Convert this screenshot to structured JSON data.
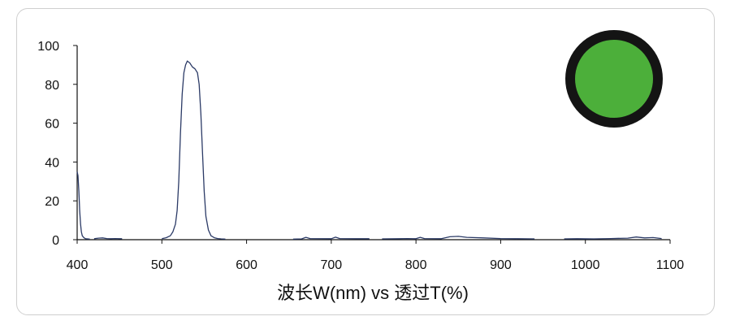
{
  "chart_data": {
    "type": "line",
    "title": "",
    "xlabel": "波长W(nm) vs 透过T(%)",
    "ylabel": "",
    "xlim": [
      400,
      1100
    ],
    "ylim": [
      0,
      100
    ],
    "x_ticks": [
      400,
      500,
      600,
      700,
      800,
      900,
      1000,
      1100
    ],
    "y_ticks": [
      0,
      20,
      40,
      60,
      80,
      100
    ],
    "grid": false,
    "legend": "none",
    "line_color": "#2b3a66",
    "series": [
      {
        "segments": [
          [
            [
              400,
              35
            ],
            [
              401,
              33
            ],
            [
              402,
              25
            ],
            [
              403,
              15
            ],
            [
              404,
              8
            ],
            [
              405,
              4
            ],
            [
              406,
              2
            ],
            [
              408,
              1
            ],
            [
              410,
              0.5
            ],
            [
              415,
              0.3
            ]
          ],
          [
            [
              420,
              0.5
            ],
            [
              425,
              0.8
            ],
            [
              430,
              0.9
            ],
            [
              435,
              0.6
            ],
            [
              440,
              0.5
            ],
            [
              445,
              0.6
            ],
            [
              450,
              0.5
            ],
            [
              453,
              0.5
            ]
          ],
          [
            [
              500,
              0.5
            ],
            [
              505,
              1
            ],
            [
              510,
              2
            ],
            [
              513,
              4
            ],
            [
              516,
              8
            ],
            [
              518,
              15
            ],
            [
              520,
              30
            ],
            [
              522,
              55
            ],
            [
              524,
              75
            ],
            [
              526,
              86
            ],
            [
              528,
              90
            ],
            [
              530,
              92
            ],
            [
              533,
              91
            ],
            [
              536,
              89
            ],
            [
              539,
              88
            ],
            [
              542,
              86
            ],
            [
              544,
              80
            ],
            [
              546,
              65
            ],
            [
              548,
              45
            ],
            [
              550,
              25
            ],
            [
              552,
              12
            ],
            [
              555,
              5
            ],
            [
              558,
              2
            ],
            [
              562,
              1
            ],
            [
              566,
              0.6
            ],
            [
              570,
              0.4
            ],
            [
              575,
              0.3
            ]
          ],
          [
            [
              655,
              0.3
            ],
            [
              665,
              0.4
            ],
            [
              670,
              1.2
            ],
            [
              675,
              0.6
            ],
            [
              700,
              0.5
            ],
            [
              705,
              1.3
            ],
            [
              710,
              0.6
            ],
            [
              730,
              0.5
            ],
            [
              745,
              0.5
            ]
          ],
          [
            [
              760,
              0.4
            ],
            [
              780,
              0.5
            ],
            [
              790,
              0.6
            ],
            [
              800,
              0.5
            ],
            [
              805,
              1.2
            ],
            [
              810,
              0.6
            ],
            [
              830,
              0.5
            ],
            [
              840,
              1.5
            ],
            [
              850,
              1.7
            ],
            [
              860,
              1.2
            ],
            [
              880,
              0.9
            ],
            [
              900,
              0.6
            ],
            [
              920,
              0.5
            ],
            [
              940,
              0.4
            ]
          ],
          [
            [
              975,
              0.4
            ],
            [
              990,
              0.5
            ],
            [
              1010,
              0.4
            ],
            [
              1030,
              0.6
            ],
            [
              1050,
              0.8
            ],
            [
              1060,
              1.4
            ],
            [
              1070,
              0.9
            ],
            [
              1080,
              1.1
            ],
            [
              1090,
              0.6
            ]
          ]
        ]
      }
    ]
  },
  "filter_swatch": {
    "icon": "green-filter-lens-icon",
    "fill_color": "#4caf3a",
    "ring_color": "#141414"
  }
}
